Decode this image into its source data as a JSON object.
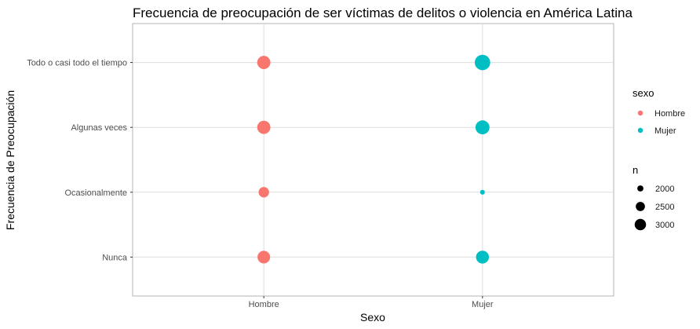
{
  "chart_data": {
    "type": "scatter",
    "title": "Frecuencia de preocupación de ser víctimas de delitos o violencia en América Latina",
    "xlabel": "Sexo",
    "ylabel": "Frecuencia de Preocupación",
    "x_categories": [
      "Hombre",
      "Mujer"
    ],
    "y_categories": [
      "Nunca",
      "Ocasionalmente",
      "Algunas veces",
      "Todo o casi todo el tiempo"
    ],
    "points": [
      {
        "x": "Hombre",
        "y": "Todo o casi todo el tiempo",
        "n": 2800,
        "sexo": "Hombre"
      },
      {
        "x": "Hombre",
        "y": "Algunas veces",
        "n": 2800,
        "sexo": "Hombre"
      },
      {
        "x": "Hombre",
        "y": "Ocasionalmente",
        "n": 2350,
        "sexo": "Hombre"
      },
      {
        "x": "Hombre",
        "y": "Nunca",
        "n": 2700,
        "sexo": "Hombre"
      },
      {
        "x": "Mujer",
        "y": "Todo o casi todo el tiempo",
        "n": 3250,
        "sexo": "Mujer"
      },
      {
        "x": "Mujer",
        "y": "Algunas veces",
        "n": 2950,
        "sexo": "Mujer"
      },
      {
        "x": "Mujer",
        "y": "Ocasionalmente",
        "n": 1750,
        "sexo": "Mujer"
      },
      {
        "x": "Mujer",
        "y": "Nunca",
        "n": 2750,
        "sexo": "Mujer"
      }
    ],
    "color_legend": {
      "title": "sexo",
      "entries": [
        {
          "label": "Hombre",
          "color": "#F8766D"
        },
        {
          "label": "Mujer",
          "color": "#00BFC4"
        }
      ]
    },
    "size_legend": {
      "title": "n",
      "entries": [
        {
          "label": "2000",
          "value": 2000
        },
        {
          "label": "2500",
          "value": 2500
        },
        {
          "label": "3000",
          "value": 3000
        }
      ]
    },
    "n_range": [
      1700,
      3300
    ],
    "grid": true,
    "legend_position": "right"
  }
}
